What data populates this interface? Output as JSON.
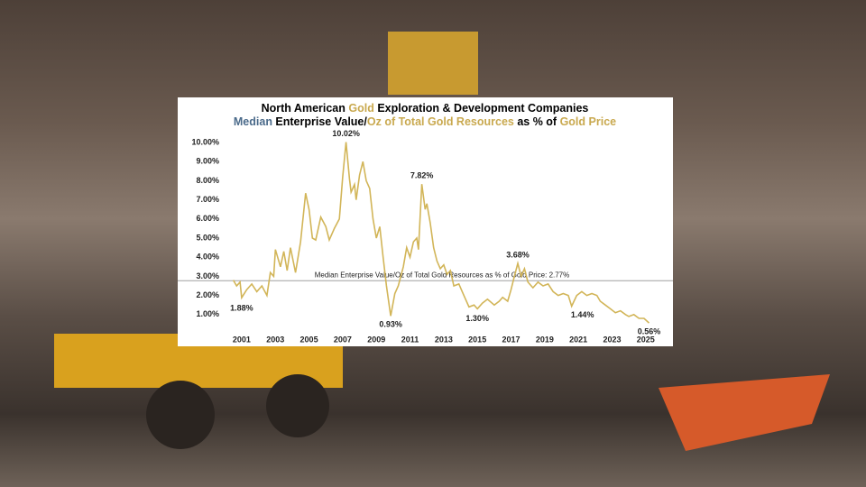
{
  "chart_data": {
    "type": "line",
    "title": [
      "North American ",
      "Gold",
      " Exploration & Development Companies"
    ],
    "title_colors": [
      "#000000",
      "#c9a94f",
      "#000000"
    ],
    "subtitle": [
      "Median",
      " Enterprise Value/",
      "Oz of Total Gold Resources",
      " as % of ",
      "Gold Price"
    ],
    "subtitle_colors": [
      "#4a6a8a",
      "#000000",
      "#c9a94f",
      "#000000",
      "#c9a94f"
    ],
    "x": [
      2000.5,
      2000.7,
      2000.9,
      2001.0,
      2001.3,
      2001.6,
      2001.9,
      2002.2,
      2002.5,
      2002.7,
      2002.9,
      2003.0,
      2003.3,
      2003.5,
      2003.7,
      2003.9,
      2004.2,
      2004.5,
      2004.8,
      2005.0,
      2005.2,
      2005.4,
      2005.7,
      2006.0,
      2006.2,
      2006.5,
      2006.8,
      2007.0,
      2007.2,
      2007.4,
      2007.5,
      2007.7,
      2007.8,
      2008.0,
      2008.2,
      2008.4,
      2008.6,
      2008.8,
      2009.0,
      2009.2,
      2009.4,
      2009.6,
      2009.85,
      2010.1,
      2010.3,
      2010.6,
      2010.8,
      2011.0,
      2011.2,
      2011.4,
      2011.5,
      2011.7,
      2011.9,
      2012.0,
      2012.2,
      2012.4,
      2012.6,
      2012.8,
      2013.0,
      2013.2,
      2013.4,
      2013.6,
      2013.9,
      2014.1,
      2014.3,
      2014.5,
      2014.8,
      2015.0,
      2015.3,
      2015.6,
      2016.0,
      2016.3,
      2016.5,
      2016.8,
      2017.0,
      2017.2,
      2017.4,
      2017.6,
      2017.8,
      2018.0,
      2018.3,
      2018.6,
      2018.9,
      2019.2,
      2019.5,
      2019.8,
      2020.1,
      2020.4,
      2020.6,
      2020.9,
      2021.2,
      2021.5,
      2021.8,
      2022.1,
      2022.3,
      2022.6,
      2022.9,
      2023.2,
      2023.5,
      2023.8,
      2024.0,
      2024.3,
      2024.6,
      2024.9,
      2025.2
    ],
    "series": [
      {
        "color": "#d2b558",
        "values": [
          2.8,
          2.5,
          2.7,
          1.88,
          2.3,
          2.6,
          2.2,
          2.5,
          2.0,
          3.2,
          3.0,
          4.4,
          3.5,
          4.3,
          3.3,
          4.5,
          3.2,
          4.8,
          7.35,
          6.5,
          5.0,
          4.9,
          6.1,
          5.6,
          4.9,
          5.5,
          6.0,
          8.2,
          10.02,
          8.1,
          7.4,
          7.8,
          7.0,
          8.3,
          9.0,
          8.0,
          7.6,
          6.0,
          5.0,
          5.6,
          4.0,
          2.5,
          0.93,
          2.1,
          2.5,
          3.5,
          4.5,
          4.0,
          4.8,
          5.0,
          4.4,
          7.82,
          6.5,
          6.8,
          5.8,
          4.5,
          3.8,
          3.4,
          3.6,
          3.1,
          3.3,
          2.5,
          2.6,
          2.2,
          1.8,
          1.4,
          1.5,
          1.3,
          1.6,
          1.8,
          1.5,
          1.7,
          1.9,
          1.7,
          2.3,
          3.0,
          3.68,
          3.0,
          3.4,
          2.7,
          2.4,
          2.7,
          2.5,
          2.6,
          2.2,
          2.0,
          2.1,
          2.0,
          1.44,
          2.0,
          2.2,
          2.0,
          2.1,
          2.0,
          1.7,
          1.5,
          1.3,
          1.1,
          1.2,
          1.0,
          0.9,
          1.0,
          0.8,
          0.8,
          0.56
        ]
      }
    ],
    "annotations": [
      {
        "x": 2001.0,
        "value": 1.88,
        "label": "1.88%"
      },
      {
        "x": 2007.2,
        "value": 10.02,
        "label": "10.02%"
      },
      {
        "x": 2009.85,
        "value": 0.93,
        "label": "0.93%"
      },
      {
        "x": 2011.7,
        "value": 7.82,
        "label": "7.82%"
      },
      {
        "x": 2015.0,
        "value": 1.3,
        "label": "1.30%"
      },
      {
        "x": 2017.4,
        "value": 3.68,
        "label": "3.68%"
      },
      {
        "x": 2020.6,
        "value": 1.44,
        "label": "1.44%"
      },
      {
        "x": 2025.2,
        "value": 0.56,
        "label": "0.56%"
      }
    ],
    "reference": {
      "value": 2.77,
      "label": "Median Enterprise Value/Oz of Total Gold Resources as % of Gold Price: 2.77%",
      "color": "#a0a0a0"
    },
    "xlim": [
      2000.2,
      2025.6
    ],
    "xticks": [
      2001,
      2003,
      2005,
      2007,
      2009,
      2011,
      2013,
      2015,
      2017,
      2019,
      2021,
      2023,
      2025
    ],
    "ylim": [
      0,
      10.4
    ],
    "yticks": [
      {
        "value": 1,
        "label": "1.00%"
      },
      {
        "value": 2,
        "label": "2.00%"
      },
      {
        "value": 3,
        "label": "3.00%"
      },
      {
        "value": 4,
        "label": "4.00%"
      },
      {
        "value": 5,
        "label": "5.00%"
      },
      {
        "value": 6,
        "label": "6.00%"
      },
      {
        "value": 7,
        "label": "7.00%"
      },
      {
        "value": 8,
        "label": "8.00%"
      },
      {
        "value": 9,
        "label": "9.00%"
      },
      {
        "value": 10,
        "label": "10.00%"
      }
    ]
  }
}
